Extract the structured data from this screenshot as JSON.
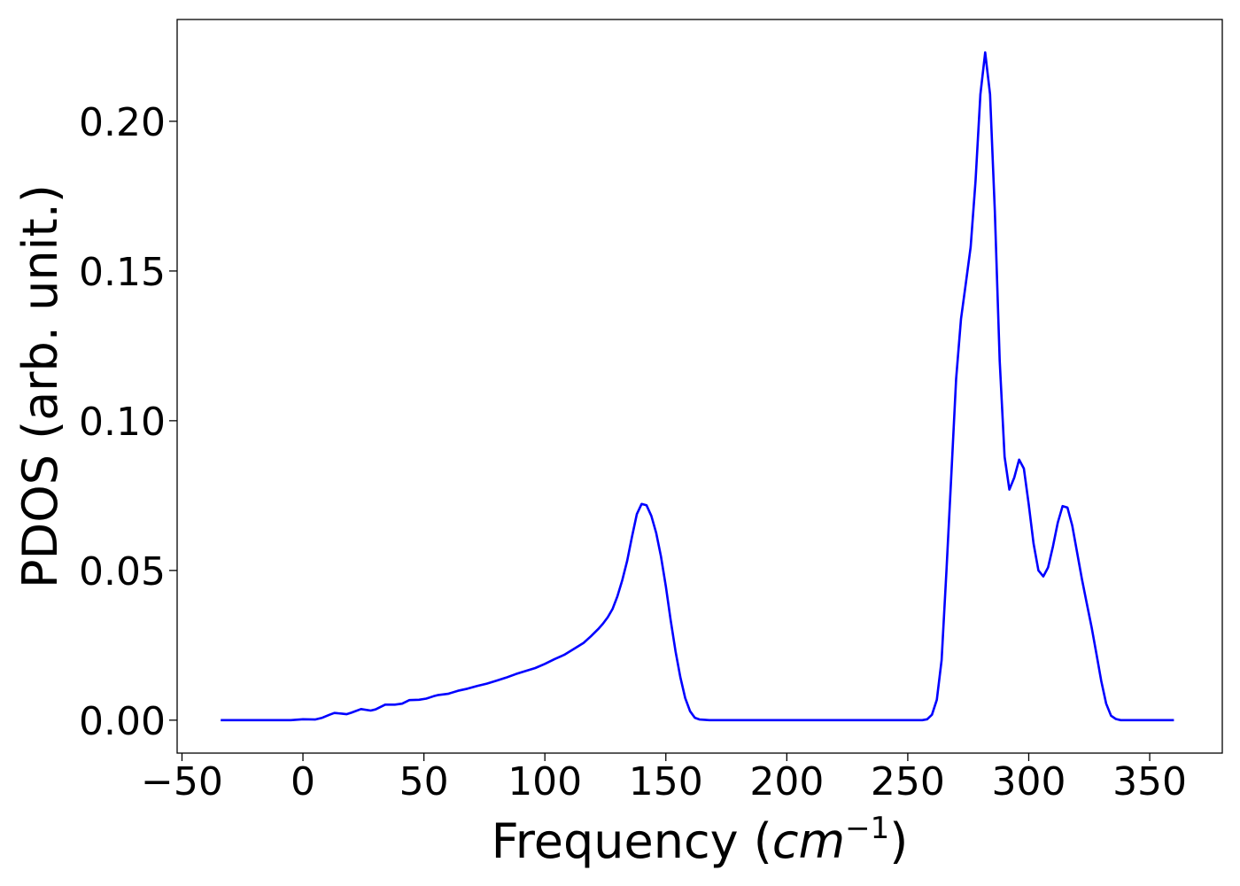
{
  "chart_data": {
    "type": "line",
    "xlabel": "Frequency (cm⁻¹)",
    "xlabel_main": "Frequency (",
    "xlabel_unit": "cm",
    "xlabel_exp": "−1",
    "xlabel_close": ")",
    "ylabel": "PDOS (arb. unit.)",
    "xlim": [
      -52,
      380
    ],
    "ylim": [
      -0.011,
      0.234
    ],
    "xticks": [
      -50,
      0,
      50,
      100,
      150,
      200,
      250,
      300,
      350
    ],
    "xtick_labels": [
      "−50",
      "0",
      "50",
      "100",
      "150",
      "200",
      "250",
      "300",
      "350"
    ],
    "yticks": [
      0.0,
      0.05,
      0.1,
      0.15,
      0.2
    ],
    "ytick_labels": [
      "0.00",
      "0.05",
      "0.10",
      "0.15",
      "0.20"
    ],
    "grid": false,
    "series": [
      {
        "color": "#0000ff",
        "x": [
          -34,
          -20,
          -10,
          -5,
          0,
          5,
          8,
          11,
          13,
          16,
          18,
          20,
          24,
          28,
          30,
          34,
          38,
          41,
          44,
          48,
          51,
          54,
          56,
          60,
          64,
          68,
          72,
          76,
          80,
          84,
          88,
          92,
          96,
          100,
          104,
          108,
          112,
          116,
          119,
          122,
          124,
          126,
          128,
          130,
          132,
          134,
          136,
          138,
          140,
          142,
          144,
          146,
          148,
          150,
          152,
          154,
          156,
          158,
          160,
          162,
          164,
          168,
          180,
          200,
          220,
          240,
          250,
          256,
          258,
          260,
          262,
          264,
          266,
          268,
          270,
          272,
          274,
          276,
          278,
          280,
          282,
          284,
          286,
          288,
          290,
          292,
          294,
          296,
          298,
          300,
          302,
          304,
          306,
          308,
          310,
          312,
          314,
          316,
          318,
          320,
          322,
          324,
          326,
          328,
          330,
          332,
          334,
          336,
          338,
          345,
          360
        ],
        "y": [
          0.0,
          0.0,
          0.0,
          0.0,
          0.0003,
          0.0002,
          0.0008,
          0.0018,
          0.0024,
          0.0022,
          0.002,
          0.0025,
          0.0037,
          0.0032,
          0.0036,
          0.0052,
          0.0052,
          0.0055,
          0.0067,
          0.0068,
          0.0072,
          0.008,
          0.0084,
          0.0088,
          0.0098,
          0.0105,
          0.0114,
          0.0122,
          0.0132,
          0.0142,
          0.0154,
          0.0164,
          0.0174,
          0.0188,
          0.0204,
          0.0218,
          0.0238,
          0.0258,
          0.028,
          0.0304,
          0.0322,
          0.0344,
          0.0372,
          0.0414,
          0.0468,
          0.0532,
          0.0612,
          0.0688,
          0.0722,
          0.0718,
          0.0682,
          0.0626,
          0.0546,
          0.0446,
          0.0334,
          0.023,
          0.0144,
          0.0074,
          0.003,
          0.0008,
          0.0002,
          0.0,
          0.0,
          0.0,
          0.0,
          0.0,
          0.0,
          0.0,
          0.0003,
          0.0018,
          0.0068,
          0.02,
          0.05,
          0.082,
          0.114,
          0.134,
          0.146,
          0.158,
          0.18,
          0.209,
          0.223,
          0.209,
          0.17,
          0.12,
          0.088,
          0.077,
          0.081,
          0.087,
          0.084,
          0.072,
          0.059,
          0.05,
          0.048,
          0.051,
          0.058,
          0.066,
          0.0715,
          0.071,
          0.065,
          0.056,
          0.047,
          0.039,
          0.031,
          0.022,
          0.013,
          0.0055,
          0.0015,
          0.0004,
          0.0,
          0.0,
          0.0
        ]
      }
    ]
  }
}
